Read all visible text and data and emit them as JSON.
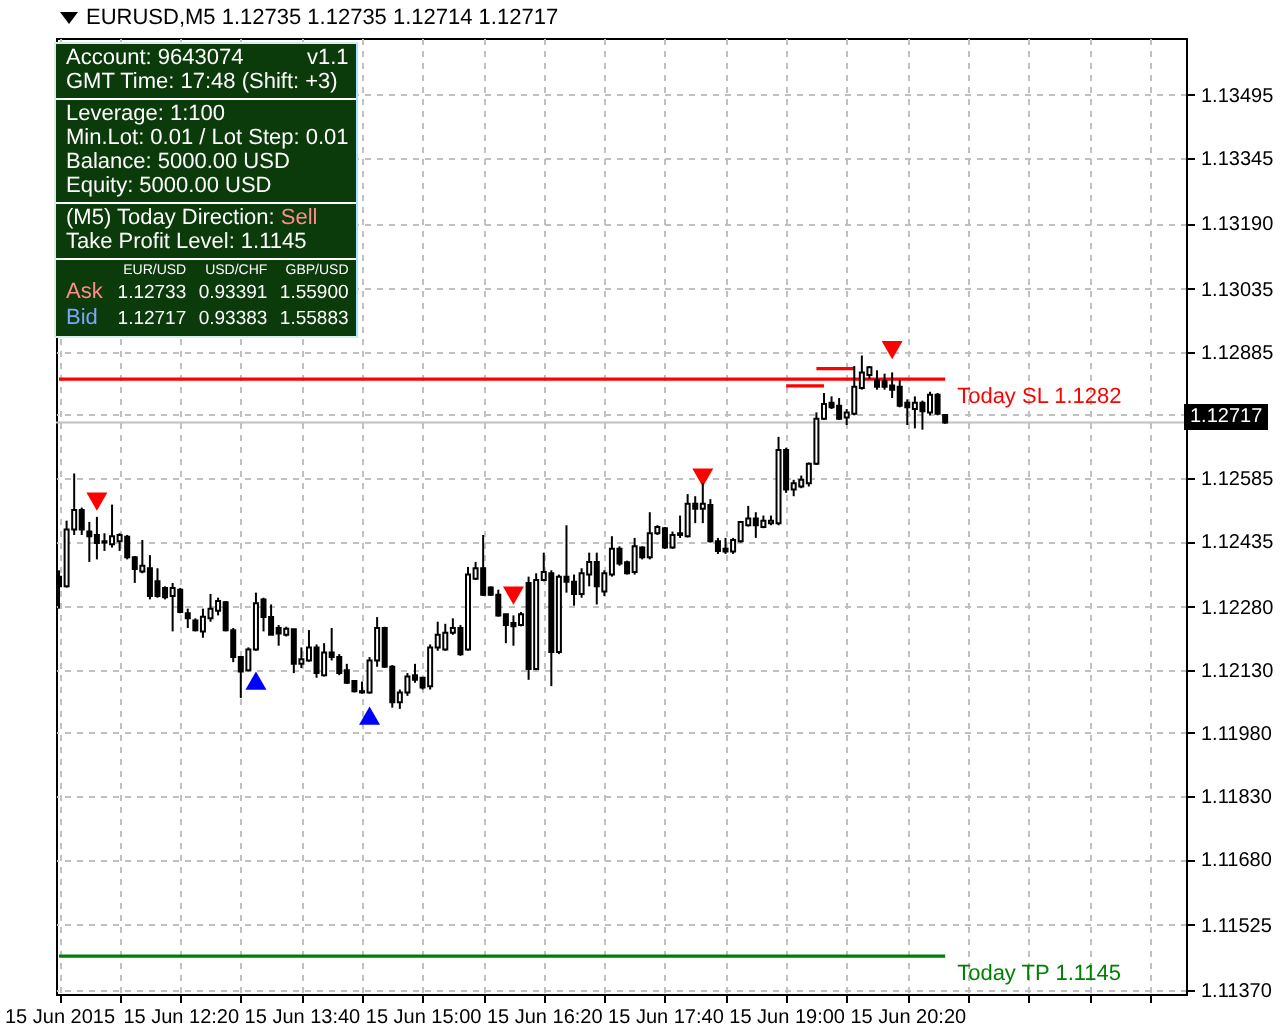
{
  "chart_data": {
    "type": "candlestick",
    "title": "EURUSD,M5 1.12735 1.12735 1.12714 1.12717",
    "color": "#000000",
    "x": [
      "2015-06-15T11:00",
      "2015-06-15T11:05",
      "2015-06-15T11:10",
      "2015-06-15T11:15",
      "2015-06-15T11:20",
      "2015-06-15T11:25",
      "2015-06-15T11:30",
      "2015-06-15T11:35",
      "2015-06-15T11:40",
      "2015-06-15T11:45",
      "2015-06-15T11:50",
      "2015-06-15T11:55",
      "2015-06-15T12:00",
      "2015-06-15T12:05",
      "2015-06-15T12:10",
      "2015-06-15T12:15",
      "2015-06-15T12:20",
      "2015-06-15T12:25",
      "2015-06-15T12:30",
      "2015-06-15T12:35",
      "2015-06-15T12:40",
      "2015-06-15T12:45",
      "2015-06-15T12:50",
      "2015-06-15T12:55",
      "2015-06-15T13:00",
      "2015-06-15T13:05",
      "2015-06-15T13:10",
      "2015-06-15T13:15",
      "2015-06-15T13:20",
      "2015-06-15T13:25",
      "2015-06-15T13:30",
      "2015-06-15T13:35",
      "2015-06-15T13:40",
      "2015-06-15T13:45",
      "2015-06-15T13:50",
      "2015-06-15T13:55",
      "2015-06-15T14:00",
      "2015-06-15T14:05",
      "2015-06-15T14:10",
      "2015-06-15T14:15",
      "2015-06-15T14:20",
      "2015-06-15T14:25",
      "2015-06-15T14:30",
      "2015-06-15T14:35",
      "2015-06-15T14:40",
      "2015-06-15T14:45",
      "2015-06-15T14:50",
      "2015-06-15T14:55",
      "2015-06-15T15:00",
      "2015-06-15T15:05",
      "2015-06-15T15:10",
      "2015-06-15T15:15",
      "2015-06-15T15:20",
      "2015-06-15T15:25",
      "2015-06-15T15:30",
      "2015-06-15T15:35",
      "2015-06-15T15:40",
      "2015-06-15T15:45",
      "2015-06-15T15:50",
      "2015-06-15T15:55",
      "2015-06-15T16:00",
      "2015-06-15T16:05",
      "2015-06-15T16:10",
      "2015-06-15T16:15",
      "2015-06-15T16:20",
      "2015-06-15T16:25",
      "2015-06-15T16:30",
      "2015-06-15T16:35",
      "2015-06-15T16:40",
      "2015-06-15T16:45",
      "2015-06-15T16:50",
      "2015-06-15T16:55",
      "2015-06-15T17:00",
      "2015-06-15T17:05",
      "2015-06-15T17:10",
      "2015-06-15T17:15",
      "2015-06-15T17:20",
      "2015-06-15T17:25",
      "2015-06-15T17:30",
      "2015-06-15T17:35",
      "2015-06-15T17:40",
      "2015-06-15T17:45",
      "2015-06-15T17:50",
      "2015-06-15T17:55",
      "2015-06-15T18:00",
      "2015-06-15T18:05",
      "2015-06-15T18:10",
      "2015-06-15T18:15",
      "2015-06-15T18:20",
      "2015-06-15T18:25",
      "2015-06-15T18:30",
      "2015-06-15T18:35",
      "2015-06-15T18:40",
      "2015-06-15T18:45",
      "2015-06-15T18:50",
      "2015-06-15T18:55",
      "2015-06-15T19:00",
      "2015-06-15T19:05",
      "2015-06-15T19:10",
      "2015-06-15T19:15",
      "2015-06-15T19:20",
      "2015-06-15T19:25",
      "2015-06-15T19:30",
      "2015-06-15T19:35",
      "2015-06-15T19:40",
      "2015-06-15T19:45",
      "2015-06-15T19:50",
      "2015-06-15T19:55",
      "2015-06-15T20:00",
      "2015-06-15T20:05",
      "2015-06-15T20:10",
      "2015-06-15T20:15",
      "2015-06-15T20:20",
      "2015-06-15T20:25",
      "2015-06-15T20:30",
      "2015-06-15T20:35",
      "2015-06-15T20:40",
      "2015-06-15T20:45"
    ],
    "ohlc": [
      [
        1.12351,
        1.12366,
        1.12275,
        1.12328
      ],
      [
        1.12328,
        1.12484,
        1.12325,
        1.12463
      ],
      [
        1.12463,
        1.12596,
        1.1245,
        1.12509
      ],
      [
        1.12509,
        1.12515,
        1.1245,
        1.12463
      ],
      [
        1.12458,
        1.12481,
        1.12386,
        1.12447
      ],
      [
        1.1245,
        1.12493,
        1.12392,
        1.12431
      ],
      [
        1.12435,
        1.12454,
        1.12412,
        1.12432
      ],
      [
        1.12428,
        1.12522,
        1.1242,
        1.12447
      ],
      [
        1.12435,
        1.12454,
        1.12412,
        1.1245
      ],
      [
        1.12446,
        1.1245,
        1.12392,
        1.12397
      ],
      [
        1.12397,
        1.124,
        1.12336,
        1.12369
      ],
      [
        1.12363,
        1.12438,
        1.12359,
        1.12377
      ],
      [
        1.12371,
        1.12402,
        1.12297,
        1.12305
      ],
      [
        1.1234,
        1.12371,
        1.12301,
        1.12305
      ],
      [
        1.12324,
        1.12328,
        1.12297,
        1.12302
      ],
      [
        1.12305,
        1.12336,
        1.12221,
        1.12324
      ],
      [
        1.1232,
        1.12324,
        1.12264,
        1.12267
      ],
      [
        1.12264,
        1.12275,
        1.12229,
        1.12252
      ],
      [
        1.12247,
        1.12252,
        1.12221,
        1.12224
      ],
      [
        1.12221,
        1.12275,
        1.12206,
        1.12256
      ],
      [
        1.12252,
        1.1231,
        1.12244,
        1.12275
      ],
      [
        1.1227,
        1.12301,
        1.12259,
        1.12293
      ],
      [
        1.1229,
        1.12293,
        1.12221,
        1.12224
      ],
      [
        1.12224,
        1.12229,
        1.12148,
        1.1216
      ],
      [
        1.1216,
        1.1216,
        1.12063,
        1.12126
      ],
      [
        1.12129,
        1.12183,
        1.12126,
        1.12178
      ],
      [
        1.12178,
        1.12313,
        1.12175,
        1.12288
      ],
      [
        1.12297,
        1.12301,
        1.12221,
        1.12255
      ],
      [
        1.12255,
        1.12285,
        1.12213,
        1.12213
      ],
      [
        1.12229,
        1.12236,
        1.12187,
        1.12216
      ],
      [
        1.12213,
        1.12232,
        1.12209,
        1.12227
      ],
      [
        1.12226,
        1.12227,
        1.12122,
        1.12144
      ],
      [
        1.12144,
        1.12183,
        1.12134,
        1.12155
      ],
      [
        1.12152,
        1.12224,
        1.12149,
        1.12183
      ],
      [
        1.12183,
        1.1219,
        1.12111,
        1.12122
      ],
      [
        1.12117,
        1.12193,
        1.12114,
        1.12171
      ],
      [
        1.12171,
        1.12229,
        1.12152,
        1.1216
      ],
      [
        1.1216,
        1.12167,
        1.12117,
        1.12122
      ],
      [
        1.12129,
        1.12144,
        1.12096,
        1.12099
      ],
      [
        1.12103,
        1.12103,
        1.12076,
        1.12079
      ],
      [
        1.12079,
        1.12102,
        1.12073,
        1.12076
      ],
      [
        1.12076,
        1.1216,
        1.12073,
        1.12152
      ],
      [
        1.12152,
        1.12255,
        1.12137,
        1.12229
      ],
      [
        1.12229,
        1.12232,
        1.12134,
        1.12137
      ],
      [
        1.12137,
        1.12141,
        1.1204,
        1.12053
      ],
      [
        1.12053,
        1.12083,
        1.12037,
        1.12076
      ],
      [
        1.12076,
        1.12122,
        1.12068,
        1.12114
      ],
      [
        1.12117,
        1.12144,
        1.12099,
        1.12106
      ],
      [
        1.12111,
        1.12111,
        1.12083,
        1.12088
      ],
      [
        1.12091,
        1.1219,
        1.12083,
        1.12183
      ],
      [
        1.12183,
        1.12244,
        1.12175,
        1.12213
      ],
      [
        1.12178,
        1.12239,
        1.12175,
        1.12218
      ],
      [
        1.12218,
        1.12252,
        1.12213,
        1.12229
      ],
      [
        1.12229,
        1.12236,
        1.12163,
        1.12167
      ],
      [
        1.12178,
        1.12374,
        1.12175,
        1.12356
      ],
      [
        1.12346,
        1.12386,
        1.12343,
        1.12371
      ],
      [
        1.12371,
        1.1245,
        1.12305,
        1.12308
      ],
      [
        1.12325,
        1.12328,
        1.12305,
        1.12308
      ],
      [
        1.12308,
        1.1232,
        1.12256,
        1.12259
      ],
      [
        1.12262,
        1.12262,
        1.12193,
        1.12236
      ],
      [
        1.12241,
        1.12259,
        1.12187,
        1.12233
      ],
      [
        1.12236,
        1.12267,
        1.12233,
        1.12262
      ],
      [
        1.12336,
        1.12351,
        1.12106,
        1.12132
      ],
      [
        1.12132,
        1.12359,
        1.12129,
        1.12343
      ],
      [
        1.12343,
        1.12408,
        1.1234,
        1.12362
      ],
      [
        1.12359,
        1.12366,
        1.12091,
        1.12172
      ],
      [
        1.12172,
        1.12356,
        1.12167,
        1.12351
      ],
      [
        1.12351,
        1.12473,
        1.12313,
        1.12339
      ],
      [
        1.12339,
        1.12356,
        1.12282,
        1.1231
      ],
      [
        1.1231,
        1.12371,
        1.12301,
        1.12359
      ],
      [
        1.12356,
        1.12408,
        1.12328,
        1.12386
      ],
      [
        1.12386,
        1.12408,
        1.12285,
        1.12328
      ],
      [
        1.12316,
        1.12366,
        1.12305,
        1.12359
      ],
      [
        1.12356,
        1.12447,
        1.12351,
        1.12417
      ],
      [
        1.12417,
        1.12423,
        1.12377,
        1.12382
      ],
      [
        1.12385,
        1.12389,
        1.12356,
        1.12359
      ],
      [
        1.12362,
        1.12443,
        1.12356,
        1.12423
      ],
      [
        1.1242,
        1.12423,
        1.12392,
        1.12397
      ],
      [
        1.12397,
        1.12504,
        1.12392,
        1.12454
      ],
      [
        1.12454,
        1.12473,
        1.1245,
        1.12469
      ],
      [
        1.12466,
        1.12469,
        1.12417,
        1.1242
      ],
      [
        1.1242,
        1.12458,
        1.12417,
        1.1245
      ],
      [
        1.1245,
        1.12496,
        1.12443,
        1.12454
      ],
      [
        1.12447,
        1.12547,
        1.12444,
        1.12524
      ],
      [
        1.12524,
        1.12542,
        1.12478,
        1.12512
      ],
      [
        1.12512,
        1.12573,
        1.12478,
        1.12524
      ],
      [
        1.12521,
        1.12535,
        1.12432,
        1.12435
      ],
      [
        1.12435,
        1.12443,
        1.12405,
        1.12412
      ],
      [
        1.12417,
        1.12443,
        1.12405,
        1.12411
      ],
      [
        1.12411,
        1.12443,
        1.12405,
        1.12438
      ],
      [
        1.12435,
        1.12481,
        1.12432,
        1.12481
      ],
      [
        1.12473,
        1.12519,
        1.1247,
        1.12489
      ],
      [
        1.12489,
        1.12504,
        1.12443,
        1.12473
      ],
      [
        1.12469,
        1.12496,
        1.12466,
        1.12484
      ],
      [
        1.12478,
        1.12496,
        1.12473,
        1.12484
      ],
      [
        1.12478,
        1.12683,
        1.12473,
        1.12652
      ],
      [
        1.12652,
        1.12657,
        1.1255,
        1.12558
      ],
      [
        1.12558,
        1.12581,
        1.12542,
        1.12573
      ],
      [
        1.12565,
        1.12591,
        1.12561,
        1.12581
      ],
      [
        1.12573,
        1.12622,
        1.12565,
        1.12619
      ],
      [
        1.12619,
        1.12741,
        1.12616,
        1.12726
      ],
      [
        1.12726,
        1.12787,
        1.12723,
        1.12761
      ],
      [
        1.12764,
        1.12779,
        1.12749,
        1.12753
      ],
      [
        1.12757,
        1.12775,
        1.12723,
        1.12726
      ],
      [
        1.12729,
        1.12749,
        1.12711,
        1.12741
      ],
      [
        1.12738,
        1.12851,
        1.12734,
        1.12802
      ],
      [
        1.12799,
        1.12876,
        1.12795,
        1.12836
      ],
      [
        1.1283,
        1.12851,
        1.12821,
        1.12848
      ],
      [
        1.12818,
        1.12841,
        1.12795,
        1.12802
      ],
      [
        1.12815,
        1.12833,
        1.12795,
        1.12802
      ],
      [
        1.12805,
        1.12836,
        1.12775,
        1.12795
      ],
      [
        1.12802,
        1.12818,
        1.12753,
        1.12757
      ],
      [
        1.12764,
        1.12772,
        1.12711,
        1.12753
      ],
      [
        1.12749,
        1.12779,
        1.12703,
        1.12764
      ],
      [
        1.12764,
        1.12769,
        1.127,
        1.12744
      ],
      [
        1.12741,
        1.1279,
        1.12734,
        1.12783
      ],
      [
        1.12783,
        1.12787,
        1.12734,
        1.12738
      ],
      [
        1.12735,
        1.12735,
        1.12714,
        1.12717
      ]
    ],
    "series": [
      {
        "type": "line",
        "name": "Today SL 1.1282",
        "color": "#ff0000",
        "x": [
          "2015-06-15T11:00",
          "2015-06-15T20:45"
        ],
        "values": [
          1.1282,
          1.1282
        ]
      },
      {
        "type": "line",
        "name": "Today TP 1.1145",
        "color": "#008000",
        "x": [
          "2015-06-15T11:00",
          "2015-06-15T20:45"
        ],
        "values": [
          1.1145,
          1.1145
        ]
      },
      {
        "type": "line",
        "color": "#ff0000",
        "x": [
          "2015-06-15T19:00",
          "2015-06-15T19:25"
        ],
        "values": [
          1.12804,
          1.12804
        ]
      },
      {
        "type": "line",
        "color": "#ff0000",
        "x": [
          "2015-06-15T19:20",
          "2015-06-15T19:45"
        ],
        "values": [
          1.12845,
          1.12845
        ]
      },
      {
        "type": "scatter",
        "marker": "triangle",
        "color": "#ff0000",
        "x": [
          "2015-06-15T11:25",
          "2015-06-15T16:00",
          "2015-06-15T18:05",
          "2015-06-15T20:10"
        ],
        "values": [
          1.12529,
          1.12306,
          1.12586,
          1.12889
        ]
      },
      {
        "type": "scatter",
        "marker": "triangle",
        "color": "#0000ff",
        "x": [
          "2015-06-15T13:10",
          "2015-06-15T14:25"
        ],
        "values": [
          1.12104,
          1.12021
        ]
      }
    ],
    "ref_lines": [
      {
        "axis": "y",
        "value": 1.12717,
        "label": "1.12717",
        "color": "#c0c0c0"
      }
    ],
    "xlim": [
      "2015-06-15T10:58",
      "2015-06-15T23:24"
    ],
    "ylim": [
      1.1136,
      1.1363
    ],
    "xticks": [
      {
        "value": "2015-06-15T11:00",
        "label": "15 Jun 2015"
      },
      {
        "value": "2015-06-15T11:40",
        "label": null
      },
      {
        "value": "2015-06-15T12:20",
        "label": "15 Jun 12:20"
      },
      {
        "value": "2015-06-15T13:00",
        "label": null
      },
      {
        "value": "2015-06-15T13:40",
        "label": "15 Jun 13:40"
      },
      {
        "value": "2015-06-15T14:20",
        "label": null
      },
      {
        "value": "2015-06-15T15:00",
        "label": "15 Jun 15:00"
      },
      {
        "value": "2015-06-15T15:40",
        "label": null
      },
      {
        "value": "2015-06-15T16:20",
        "label": "15 Jun 16:20"
      },
      {
        "value": "2015-06-15T17:00",
        "label": null
      },
      {
        "value": "2015-06-15T17:40",
        "label": "15 Jun 17:40"
      },
      {
        "value": "2015-06-15T18:20",
        "label": null
      },
      {
        "value": "2015-06-15T19:00",
        "label": "15 Jun 19:00"
      },
      {
        "value": "2015-06-15T19:40",
        "label": null
      },
      {
        "value": "2015-06-15T20:20",
        "label": "15 Jun 20:20"
      },
      {
        "value": "2015-06-15T21:00",
        "label": null
      },
      {
        "value": "2015-06-15T21:40",
        "label": null
      },
      {
        "value": "2015-06-15T22:20",
        "label": null
      },
      {
        "value": "2015-06-15T23:00",
        "label": null
      }
    ],
    "yticks": [
      {
        "value": 1.1137,
        "label": "1.11370"
      },
      1.11525,
      {
        "value": 1.1168,
        "label": "1.11680"
      },
      {
        "value": 1.1183,
        "label": "1.11830"
      },
      {
        "value": 1.1198,
        "label": "1.11980"
      },
      {
        "value": 1.1213,
        "label": "1.12130"
      },
      {
        "value": 1.1228,
        "label": "1.12280"
      },
      1.12435,
      1.12585,
      {
        "value": 1.12735,
        "label": null
      },
      1.12885,
      1.13035,
      {
        "value": 1.1319,
        "label": "1.13190"
      },
      1.13345,
      1.13495
    ],
    "grid": true,
    "annotations": [
      "Account: 9643074",
      "v1.1",
      "GMT Time: 17:48 (Shift: +3)",
      "Leverage: 1:100",
      "Min.Lot: 0.01 / Lot Step: 0.01",
      "Balance: 5000.00 USD",
      "Equity: 5000.00 USD",
      "(M5) Today Direction: Sell",
      "Take Profit Level: 1.1145",
      "EUR/USD USD/CHF GBP/USD",
      "Ask 1.12733 0.93391 1.55900",
      "Bid 1.12717 0.93383 1.55883"
    ]
  }
}
